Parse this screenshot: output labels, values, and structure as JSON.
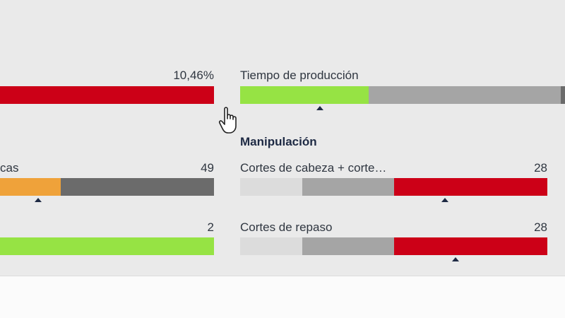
{
  "left_column": {
    "row1": {
      "value": "10,46%"
    },
    "row2": {
      "label": "cas",
      "value": "49"
    },
    "row3": {
      "value": "2"
    }
  },
  "right_column": {
    "production": {
      "label": "Tiempo de producción"
    },
    "section_title": "Manipulación",
    "head_cuts": {
      "label": "Cortes de cabeza + corte…",
      "value": "28"
    },
    "trim_cuts": {
      "label": "Cortes de repaso",
      "value": "28"
    }
  },
  "colors": {
    "red": "#cc0017",
    "green": "#96e344",
    "orange": "#efa23a",
    "dark_gray": "#6b6b6b",
    "mid_gray": "#a5a5a5",
    "light_gray": "#dcdcdc",
    "marker": "#1e2a44"
  },
  "icons": [
    "hand-pointer-cursor-icon",
    "triangle-marker-icon"
  ]
}
